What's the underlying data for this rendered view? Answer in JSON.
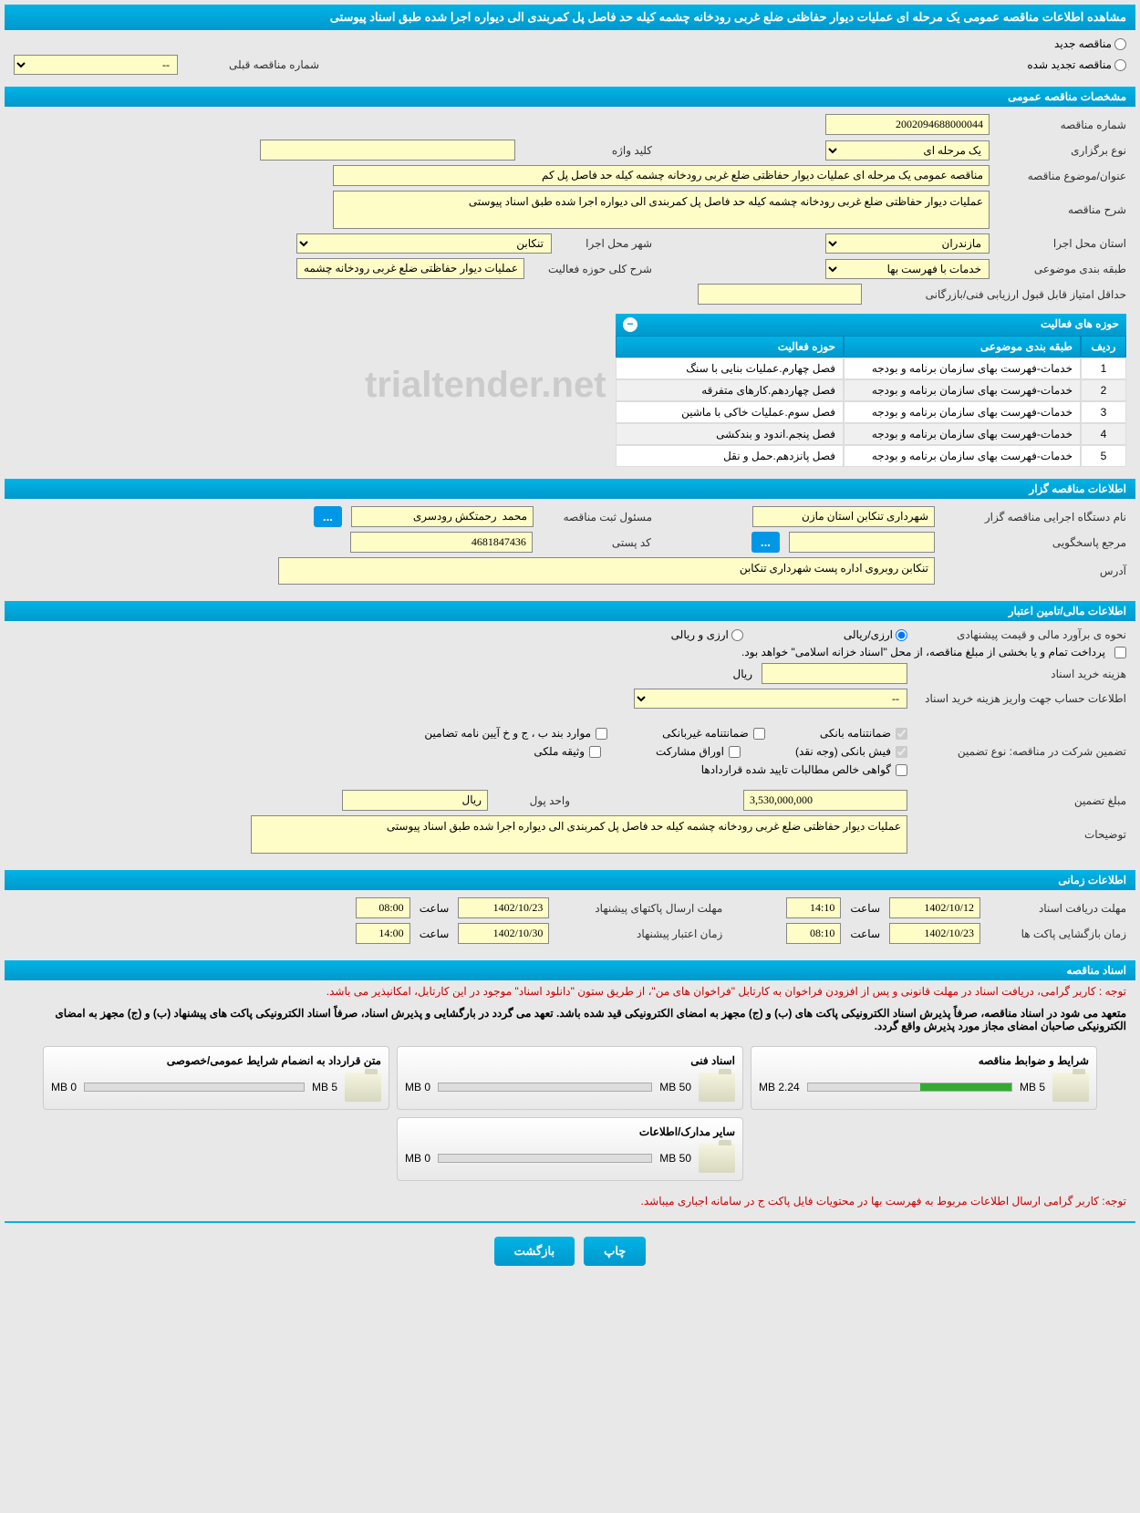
{
  "page_title": "مشاهده اطلاعات مناقصه عمومی یک مرحله ای عملیات دیوار حفاظتی ضلع غربی رودخانه چشمه کیله حد فاصل پل کمربندی الی دیواره اجرا شده طبق اسناد پیوستی",
  "radio_options": {
    "new_tender": "مناقصه جدید",
    "renewed_tender": "مناقصه تجدید شده",
    "prev_tender_label": "شماره مناقصه قبلی",
    "prev_tender_value": "--"
  },
  "section_general": {
    "title": "مشخصات مناقصه عمومی",
    "tender_number_label": "شماره مناقصه",
    "tender_number": "2002094688000044",
    "keyword_label": "کلید واژه",
    "keyword": "",
    "holding_type_label": "نوع برگزاری",
    "holding_type": "یک مرحله ای",
    "subject_label": "عنوان/موضوع مناقصه",
    "subject": "مناقصه عمومی یک مرحله ای عملیات دیوار حفاظتی ضلع غربی رودخانه چشمه کیله حد فاصل پل کم",
    "description_label": "شرح مناقصه",
    "description": "عملیات دیوار حفاظتی ضلع غربی رودخانه چشمه کیله حد فاصل پل کمربندی الی دیواره اجرا شده طبق اسناد پیوستی",
    "exec_province_label": "استان محل اجرا",
    "exec_province": "مازندران",
    "exec_city_label": "شهر محل اجرا",
    "exec_city": "تنکابن",
    "category_label": "طبقه بندی موضوعی",
    "category": "خدمات با فهرست بها",
    "activity_desc_label": "شرح کلی حوزه فعالیت",
    "activity_desc": "عملیات دیوار حفاظتی ضلع غربی رودخانه چشمه کیله حد",
    "min_score_label": "حداقل امتیاز قابل قبول ارزیابی فنی/بازرگانی",
    "min_score": ""
  },
  "activity_table": {
    "title": "حوزه های فعالیت",
    "col_num": "ردیف",
    "col_category": "طبقه بندی موضوعی",
    "col_activity": "حوزه فعالیت",
    "rows": [
      {
        "n": "1",
        "cat": "خدمات-فهرست بهای سازمان برنامه و بودجه",
        "act": "فصل چهارم.عملیات بنایی با سنگ"
      },
      {
        "n": "2",
        "cat": "خدمات-فهرست بهای سازمان برنامه و بودجه",
        "act": "فصل چهاردهم.کارهای متفرقه"
      },
      {
        "n": "3",
        "cat": "خدمات-فهرست بهای سازمان برنامه و بودجه",
        "act": "فصل سوم.عملیات خاکی با ماشین"
      },
      {
        "n": "4",
        "cat": "خدمات-فهرست بهای سازمان برنامه و بودجه",
        "act": "فصل پنجم.اندود و بندکشی"
      },
      {
        "n": "5",
        "cat": "خدمات-فهرست بهای سازمان برنامه و بودجه",
        "act": "فصل پانزدهم.حمل و نقل"
      }
    ]
  },
  "section_organizer": {
    "title": "اطلاعات مناقصه گزار",
    "org_name_label": "نام دستگاه اجرایی مناقصه گزار",
    "org_name": "شهرداری تنکابن استان مازن",
    "registrar_label": "مسئول ثبت مناقصه",
    "registrar": "محمد  رحمتکش رودسری",
    "more_btn": "...",
    "responder_label": "مرجع پاسخگویی",
    "responder": "",
    "responder_btn": "...",
    "postal_label": "کد پستی",
    "postal": "4681847436",
    "address_label": "آدرس",
    "address": "تنکابن روبروی اداره پست شهرداری تنکابن"
  },
  "section_financial": {
    "title": "اطلاعات مالی/تامین اعتبار",
    "estimate_label": "نحوه ی برآورد مالی و قیمت پیشنهادی",
    "option_rial": "ارزی/ریالی",
    "option_currency": "ارزی و ریالی",
    "treasury_note": "پرداخت تمام و یا بخشی از مبلغ مناقصه، از محل \"اسناد خزانه اسلامی\" خواهد بود.",
    "doc_cost_label": "هزینه خرید اسناد",
    "doc_cost": "",
    "doc_cost_unit": "ریال",
    "account_label": "اطلاعات حساب جهت واریز هزینه خرید اسناد",
    "account_value": "--",
    "guarantee_label": "تضمین شرکت در مناقصه:   نوع تضمین",
    "cb_bank": "ضمانتنامه بانکی",
    "cb_nonbank": "ضمانتنامه غیربانکی",
    "cb_bond": "موارد بند ب ، ج و خ آیین نامه تضامین",
    "cb_cash": "فیش بانکی (وجه نقد)",
    "cb_shares": "اوراق مشارکت",
    "cb_property": "وثیقه ملکی",
    "cb_cert": "گواهی خالص مطالبات تایید شده قراردادها",
    "amount_label": "مبلغ تضمین",
    "amount": "3,530,000,000",
    "unit_label": "واحد پول",
    "unit": "ریال",
    "notes_label": "توضیحات",
    "notes": "عملیات دیوار حفاظتی ضلع غربی رودخانه چشمه کیله حد فاصل پل کمربندی الی دیواره اجرا شده طبق اسناد پیوستی"
  },
  "section_timing": {
    "title": "اطلاعات زمانی",
    "receive_deadline_label": "مهلت دریافت اسناد",
    "receive_date": "1402/10/12",
    "receive_time": "14:10",
    "send_deadline_label": "مهلت ارسال پاکتهای پیشنهاد",
    "send_date": "1402/10/23",
    "send_time": "08:00",
    "open_label": "زمان بازگشایی پاکت ها",
    "open_date": "1402/10/23",
    "open_time": "08:10",
    "validity_label": "زمان اعتبار پیشنهاد",
    "validity_date": "1402/10/30",
    "validity_time": "14:00",
    "time_label": "ساعت"
  },
  "section_documents": {
    "title": "اسناد مناقصه",
    "note1": "توجه : کاربر گرامی، دریافت اسناد در مهلت قانونی و پس از افزودن فراخوان به کارتابل \"فراخوان های من\"، از طریق ستون \"دانلود اسناد\" موجود در این کارتابل، امکانپذیر می باشد.",
    "note2": "متعهد می شود در اسناد مناقصه، صرفاً پذیرش اسناد الکترونیکی پاکت های (ب) و (ج) مجهز به امضای الکترونیکی قید شده باشد. تعهد می گردد در بارگشایی و پذیرش اسناد، صرفاً اسناد الکترونیکی پاکت های پیشنهاد (ب) و (ج) مجهز به امضای الکترونیکی صاحبان امضای مجاز مورد پذیرش واقع گردد.",
    "files": [
      {
        "title": "شرایط و ضوابط مناقصه",
        "used": "2.24 MB",
        "total": "5 MB",
        "pct": 45
      },
      {
        "title": "اسناد فنی",
        "used": "0 MB",
        "total": "50 MB",
        "pct": 0
      },
      {
        "title": "متن قرارداد به انضمام شرایط عمومی/خصوصی",
        "used": "0 MB",
        "total": "5 MB",
        "pct": 0
      },
      {
        "title": "سایر مدارک/اطلاعات",
        "used": "0 MB",
        "total": "50 MB",
        "pct": 0
      }
    ],
    "note3": "توجه: کاربر گرامی ارسال اطلاعات مربوط به فهرست بها در محتویات فایل پاکت ج در سامانه اجباری میباشد."
  },
  "buttons": {
    "print": "چاپ",
    "back": "بازگشت"
  },
  "watermark": "trialtender.net"
}
